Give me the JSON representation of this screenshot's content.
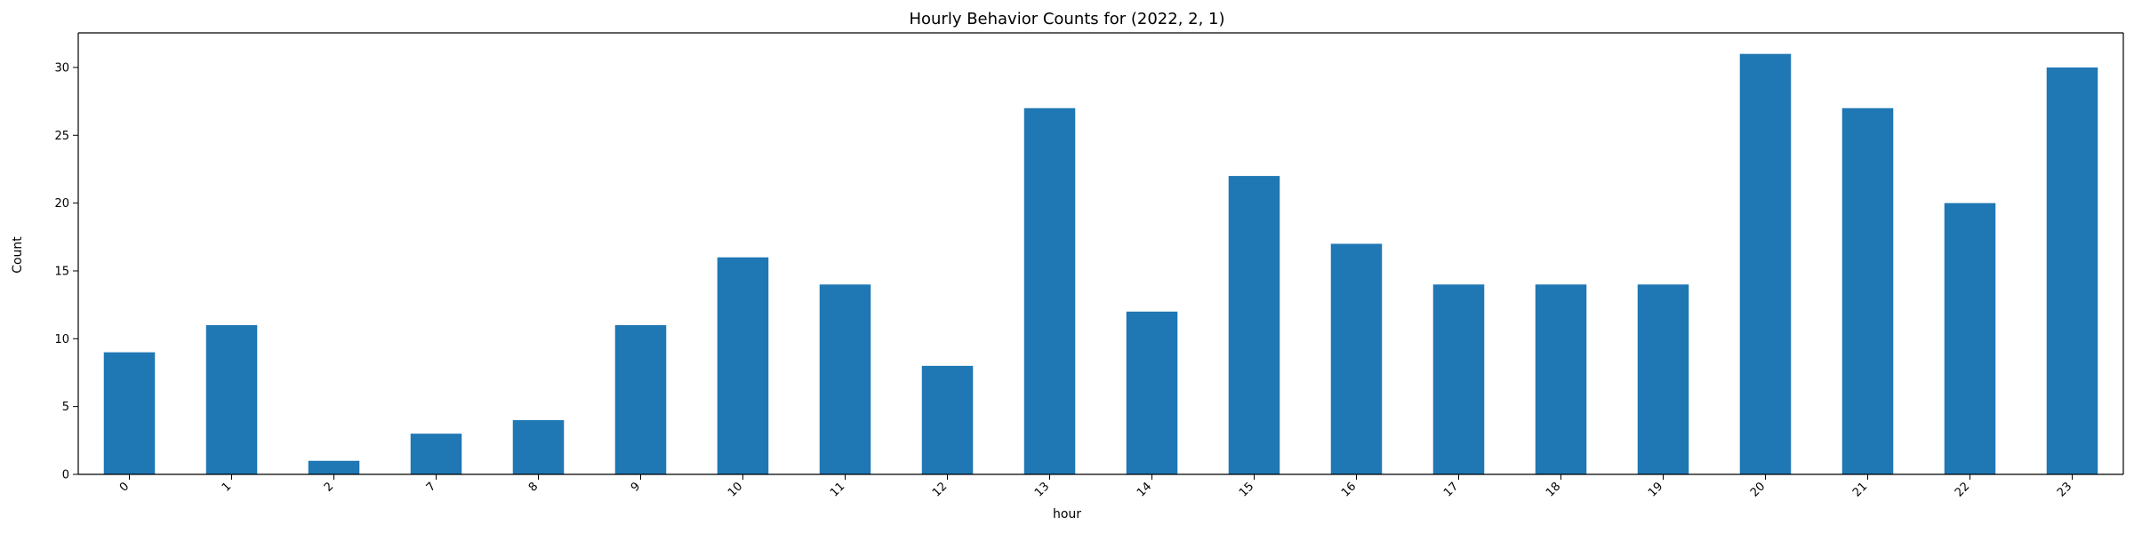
{
  "chart_data": {
    "type": "bar",
    "title": "Hourly Behavior Counts for (2022, 2, 1)",
    "xlabel": "hour",
    "ylabel": "Count",
    "categories": [
      "0",
      "1",
      "2",
      "7",
      "8",
      "9",
      "10",
      "11",
      "12",
      "13",
      "14",
      "15",
      "16",
      "17",
      "18",
      "19",
      "20",
      "21",
      "22",
      "23"
    ],
    "values": [
      9,
      11,
      1,
      3,
      4,
      11,
      16,
      14,
      8,
      27,
      12,
      22,
      17,
      14,
      14,
      14,
      31,
      27,
      20,
      30
    ],
    "ylim": [
      0,
      32.55
    ],
    "yticks": [
      0,
      5,
      10,
      15,
      20,
      25,
      30
    ],
    "grid": false,
    "legend": "none",
    "bar_color": "#1f77b4",
    "xtick_rotation": "45 degrees"
  }
}
